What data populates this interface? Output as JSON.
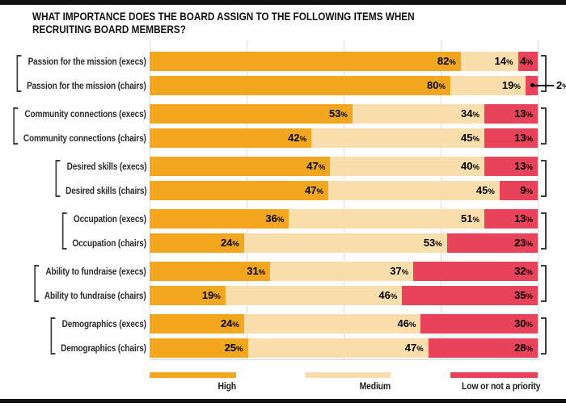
{
  "title": {
    "line1": "WHAT IMPORTANCE DOES THE BOARD ASSIGN TO THE FOLLOWING ITEMS WHEN",
    "line2": "RECRUITING BOARD MEMBERS?"
  },
  "legend": [
    {
      "label": "High",
      "color": "#F3A71E"
    },
    {
      "label": "Medium",
      "color": "#FADFAC"
    },
    {
      "label": "Low or not a priority",
      "color": "#E8435A"
    }
  ],
  "colors": {
    "grid": "#d9d9d9",
    "bracket": "#3c3c3c",
    "rule": "#121212",
    "text": "#111111"
  },
  "chart_data": {
    "type": "bar",
    "orientation": "horizontal",
    "stacked": true,
    "unit": "%",
    "xlim": [
      0,
      100
    ],
    "grid": "vertical, 25% intervals",
    "legend_position": "bottom",
    "series_names": [
      "High",
      "Medium",
      "Low or not a priority"
    ],
    "pairs": [
      {
        "group": "Passion for the mission",
        "rows": [
          {
            "label": "Passion for the mission (execs)",
            "values": [
              82,
              14,
              4
            ]
          },
          {
            "label": "Passion for the mission (chairs)",
            "values": [
              80,
              19,
              2
            ],
            "low_callout": true
          }
        ]
      },
      {
        "group": "Community connections",
        "rows": [
          {
            "label": "Community connections (execs)",
            "values": [
              53,
              34,
              13
            ]
          },
          {
            "label": "Community connections (chairs)",
            "values": [
              42,
              45,
              13
            ]
          }
        ]
      },
      {
        "group": "Desired skills",
        "rows": [
          {
            "label": "Desired skills (execs)",
            "values": [
              47,
              40,
              13
            ]
          },
          {
            "label": "Desired skills (chairs)",
            "values": [
              47,
              45,
              9
            ]
          }
        ]
      },
      {
        "group": "Occupation",
        "rows": [
          {
            "label": "Occupation (execs)",
            "values": [
              36,
              51,
              13
            ]
          },
          {
            "label": "Occupation (chairs)",
            "values": [
              24,
              53,
              23
            ]
          }
        ]
      },
      {
        "group": "Ability to fundraise",
        "rows": [
          {
            "label": "Ability to fundraise (execs)",
            "values": [
              31,
              37,
              32
            ]
          },
          {
            "label": "Ability to fundraise (chairs)",
            "values": [
              19,
              46,
              35
            ]
          }
        ]
      },
      {
        "group": "Demographics",
        "rows": [
          {
            "label": "Demographics (execs)",
            "values": [
              24,
              46,
              30
            ]
          },
          {
            "label": "Demographics (chairs)",
            "values": [
              25,
              47,
              28
            ]
          }
        ]
      }
    ]
  }
}
